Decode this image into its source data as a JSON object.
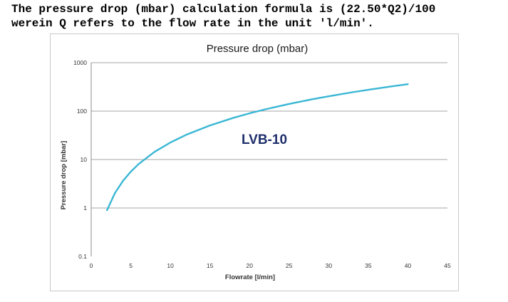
{
  "intro": {
    "line1": "The pressure drop (mbar) calculation formula is (22.50*Q2)/100",
    "line2": "werein Q refers to the flow rate in the unit 'l/min'."
  },
  "chart_data": {
    "type": "line",
    "title": "Pressure drop (mbar)",
    "xlabel": "Flowrate [l/min]",
    "ylabel": "Pressure drop [mbar]",
    "xlim": [
      0,
      45
    ],
    "ylim": [
      0.1,
      1000
    ],
    "yscale": "log",
    "x_ticks": [
      "0",
      "5",
      "10",
      "15",
      "20",
      "25",
      "30",
      "35",
      "40",
      "45"
    ],
    "y_ticks": [
      "1000",
      "100",
      "10",
      "1",
      "0.1"
    ],
    "grid": "horizontal",
    "line_color": "#3ab7d4",
    "annotation": "LVB-10",
    "series": [
      {
        "x": [
          2,
          3,
          4,
          5,
          6,
          8,
          10,
          12,
          15,
          18,
          20,
          22,
          25,
          28,
          30,
          33,
          35,
          38,
          40
        ],
        "y": [
          0.9,
          2.03,
          3.6,
          5.63,
          8.1,
          14.4,
          22.5,
          32.4,
          50.6,
          72.9,
          90,
          108.9,
          140.6,
          176.4,
          202.5,
          245,
          275.6,
          324.9,
          360
        ]
      }
    ]
  }
}
